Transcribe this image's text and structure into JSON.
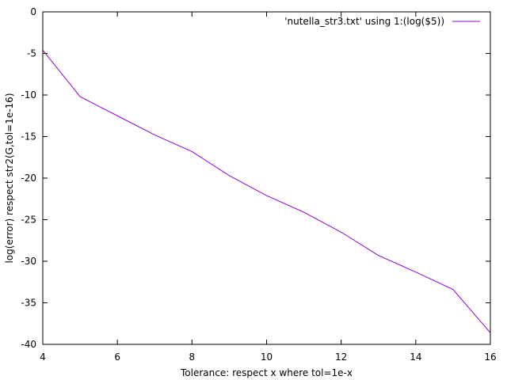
{
  "chart_data": {
    "type": "line",
    "title": "",
    "xlabel": "Tolerance:  respect x where tol=1e-x",
    "ylabel": "log(error) respect str2(G,tol=1e-16)",
    "xlim": [
      4,
      16
    ],
    "ylim": [
      -40,
      0
    ],
    "xticks": [
      4,
      6,
      8,
      10,
      12,
      14,
      16
    ],
    "yticks": [
      0,
      -5,
      -10,
      -15,
      -20,
      -25,
      -30,
      -35,
      -40
    ],
    "grid": false,
    "legend_position": "top-right",
    "series": [
      {
        "name": "'nutella_str3.txt' using 1:(log($5))",
        "color": "#9400d3",
        "x": [
          4,
          5,
          6,
          7,
          8,
          9,
          10,
          11,
          12,
          13,
          14,
          15,
          16
        ],
        "y": [
          -4.6,
          -10.2,
          -12.5,
          -14.8,
          -16.8,
          -19.7,
          -22.1,
          -24.1,
          -26.5,
          -29.3,
          -31.3,
          -33.4,
          -38.6
        ]
      }
    ]
  }
}
